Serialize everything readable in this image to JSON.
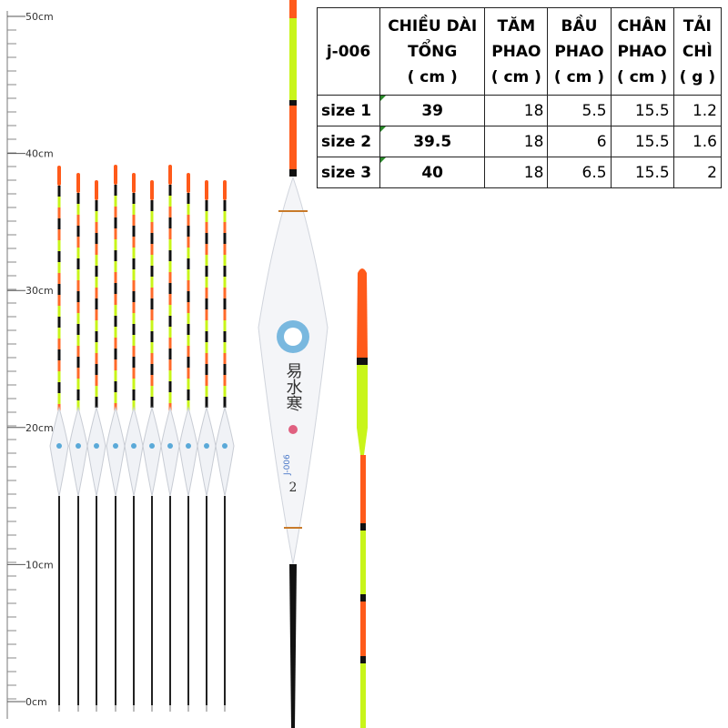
{
  "ruler": {
    "labels": [
      "50cm",
      "40cm",
      "30cm",
      "20cm",
      "10cm",
      "0cm"
    ]
  },
  "table": {
    "header": [
      [
        "j-006"
      ],
      [
        "CHIỀU DÀI",
        "TỔNG",
        "( cm )"
      ],
      [
        "TĂM",
        "PHAO",
        "( cm )"
      ],
      [
        "BẦU",
        "PHAO",
        "( cm )"
      ],
      [
        "CHÂN",
        "PHAO",
        "( cm )"
      ],
      [
        "TẢI",
        "CHÌ",
        "( g )"
      ]
    ],
    "rows": [
      [
        "size 1",
        "39",
        "18",
        "5.5",
        "15.5",
        "1.2"
      ],
      [
        "size 2",
        "39.5",
        "18",
        "6",
        "15.5",
        "1.6"
      ],
      [
        "size 3",
        "40",
        "18",
        "6.5",
        "15.5",
        "2"
      ]
    ]
  },
  "float_text": {
    "brand": "易水寒",
    "size": "2",
    "model": "J-006"
  }
}
